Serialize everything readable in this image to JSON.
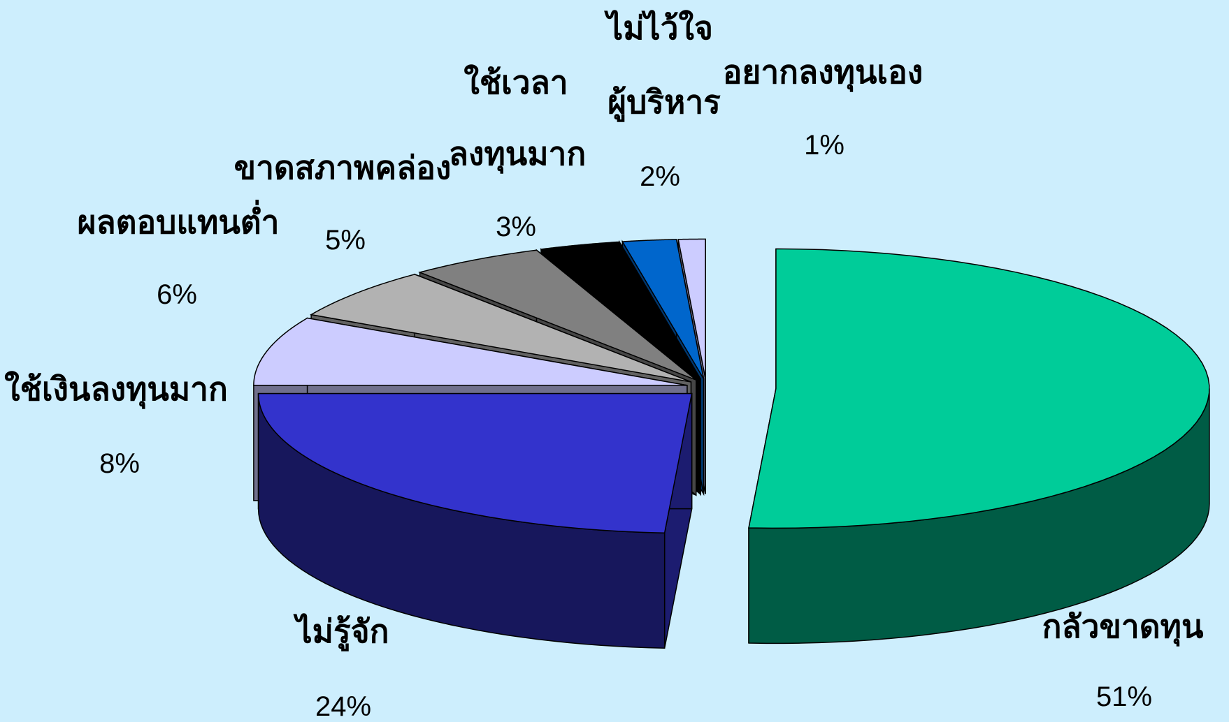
{
  "chart_data": {
    "type": "pie",
    "title": "",
    "slices": [
      {
        "label": "กลัวขาดทุน",
        "value": 51,
        "value_text": "51%",
        "color": "#00cc99"
      },
      {
        "label": "ไม่รู้จัก",
        "value": 24,
        "value_text": "24%",
        "color": "#3333cc"
      },
      {
        "label": "ใช้เงินลงทุนมาก",
        "value": 8,
        "value_text": "8%",
        "color": "#ccccff"
      },
      {
        "label": "ผลตอบแทนต่ำ",
        "value": 6,
        "value_text": "6%",
        "color": "#b2b2b2"
      },
      {
        "label": "ขาดสภาพคล่อง",
        "value": 5,
        "value_text": "5%",
        "color": "#808080"
      },
      {
        "label_lines": [
          "ใช้เวลา",
          "ลงทุนมาก"
        ],
        "label": "ใช้เวลาลงทุนมาก",
        "value": 3,
        "value_text": "3%",
        "color": "#000000"
      },
      {
        "label_lines": [
          "ไม่ไว้ใจ",
          "ผู้บริหาร"
        ],
        "label": "ไม่ไว้ใจผู้บริหาร",
        "value": 2,
        "value_text": "2%",
        "color": "#0066cc"
      },
      {
        "label": "อยากลงทุนเอง",
        "value": 1,
        "value_text": "1%",
        "color": "#ccccff"
      }
    ],
    "style": "3d-exploded-pie",
    "legend": "none"
  }
}
